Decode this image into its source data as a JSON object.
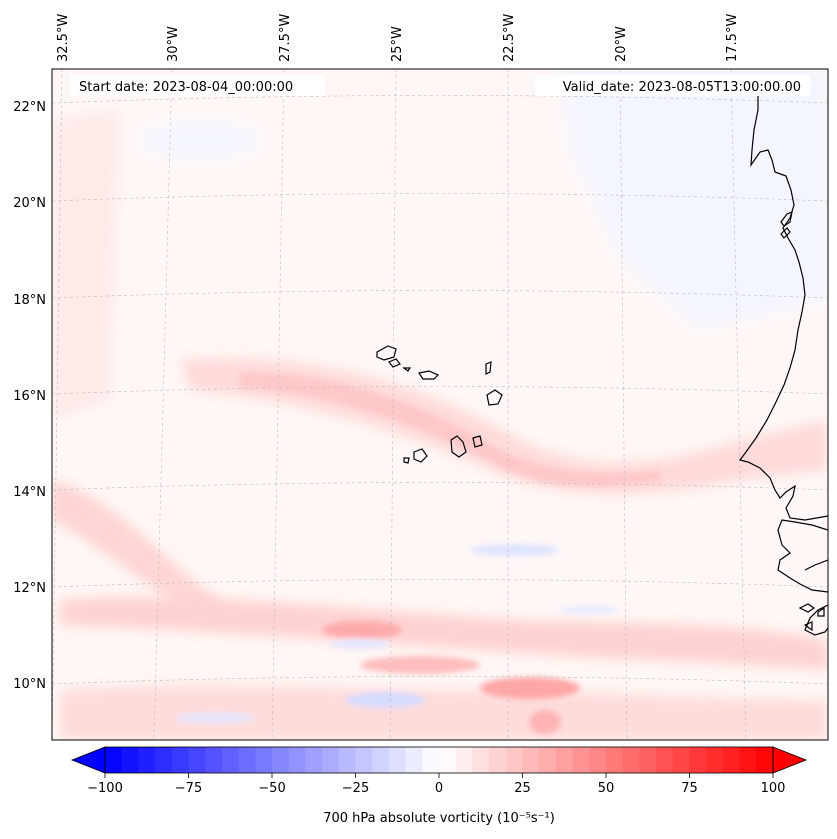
{
  "map": {
    "header": {
      "start_date": "Start date: 2023-08-04_00:00:00",
      "valid_date": "Valid_date: 2023-08-05T13:00:00.00"
    },
    "lon_labels": [
      "32.5°W",
      "30°W",
      "27.5°W",
      "25°W",
      "22.5°W",
      "20°W",
      "17.5°W"
    ],
    "lat_labels": [
      "22°N",
      "20°N",
      "18°N",
      "16°N",
      "14°N",
      "12°N",
      "10°N"
    ],
    "region": "Cape Verde Islands and West African coast",
    "field_colors": {
      "positive": "#ff0000",
      "negative": "#0000ff",
      "zero": "#ffffff"
    }
  },
  "colorbar": {
    "label": "700 hPa absolute vorticity (10⁻⁵s⁻¹)",
    "ticks": [
      "−100",
      "−75",
      "−50",
      "−25",
      "0",
      "25",
      "50",
      "75",
      "100"
    ],
    "min": -100,
    "max": 100
  }
}
